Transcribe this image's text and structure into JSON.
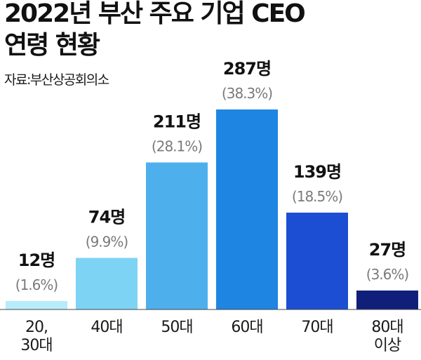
{
  "header": {
    "title_line1": "2022년 부산 주요 기업 CEO",
    "title_line2": "연령 현황",
    "source": "자료:부산상공회의소"
  },
  "chart_data": {
    "type": "bar",
    "title": "2022년 부산 주요 기업 CEO 연령 현황",
    "categories": [
      [
        "20,",
        "30대"
      ],
      [
        "40대"
      ],
      [
        "50대"
      ],
      [
        "60대"
      ],
      [
        "70대"
      ],
      [
        "80대",
        "이상"
      ]
    ],
    "values": [
      12,
      74,
      211,
      287,
      139,
      27
    ],
    "value_labels": [
      "12명",
      "74명",
      "211명",
      "287명",
      "139명",
      "27명"
    ],
    "percent_labels": [
      "(1.6%)",
      "(9.9%)",
      "(28.1%)",
      "(38.3%)",
      "(18.5%)",
      "(3.6%)"
    ],
    "colors": [
      "#b7ecfb",
      "#7dd3f4",
      "#4db0ec",
      "#1e86e2",
      "#1b4ed3",
      "#10207a"
    ],
    "grid": false,
    "legend": "none"
  }
}
